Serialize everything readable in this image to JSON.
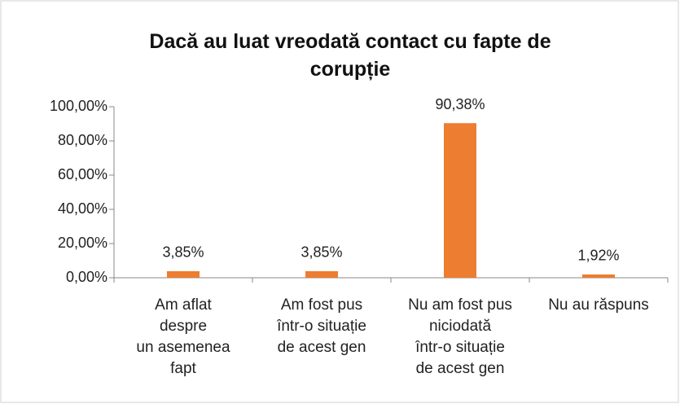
{
  "chart_data": {
    "type": "bar",
    "title": "Dacă au luat vreodată contact cu fapte de\ncorupție",
    "categories": [
      "Am aflat\ndespre\nun asemenea\nfapt",
      "Am fost pus\nîntr-o situație\nde acest gen",
      "Nu am fost pus\nniciodată\nîntr-o situație\nde acest gen",
      "Nu au răspuns"
    ],
    "values": [
      3.85,
      3.85,
      90.38,
      1.92
    ],
    "value_labels": [
      "3,85%",
      "3,85%",
      "90,38%",
      "1,92%"
    ],
    "color": "#ed7d31",
    "ylim": [
      0,
      100
    ],
    "yticks": [
      {
        "value": 0,
        "label": "0,00%"
      },
      {
        "value": 20,
        "label": "20,00%"
      },
      {
        "value": 40,
        "label": "40,00%"
      },
      {
        "value": 60,
        "label": "60,00%"
      },
      {
        "value": 80,
        "label": "80,00%"
      },
      {
        "value": 100,
        "label": "100,00%"
      }
    ],
    "grid": false
  }
}
